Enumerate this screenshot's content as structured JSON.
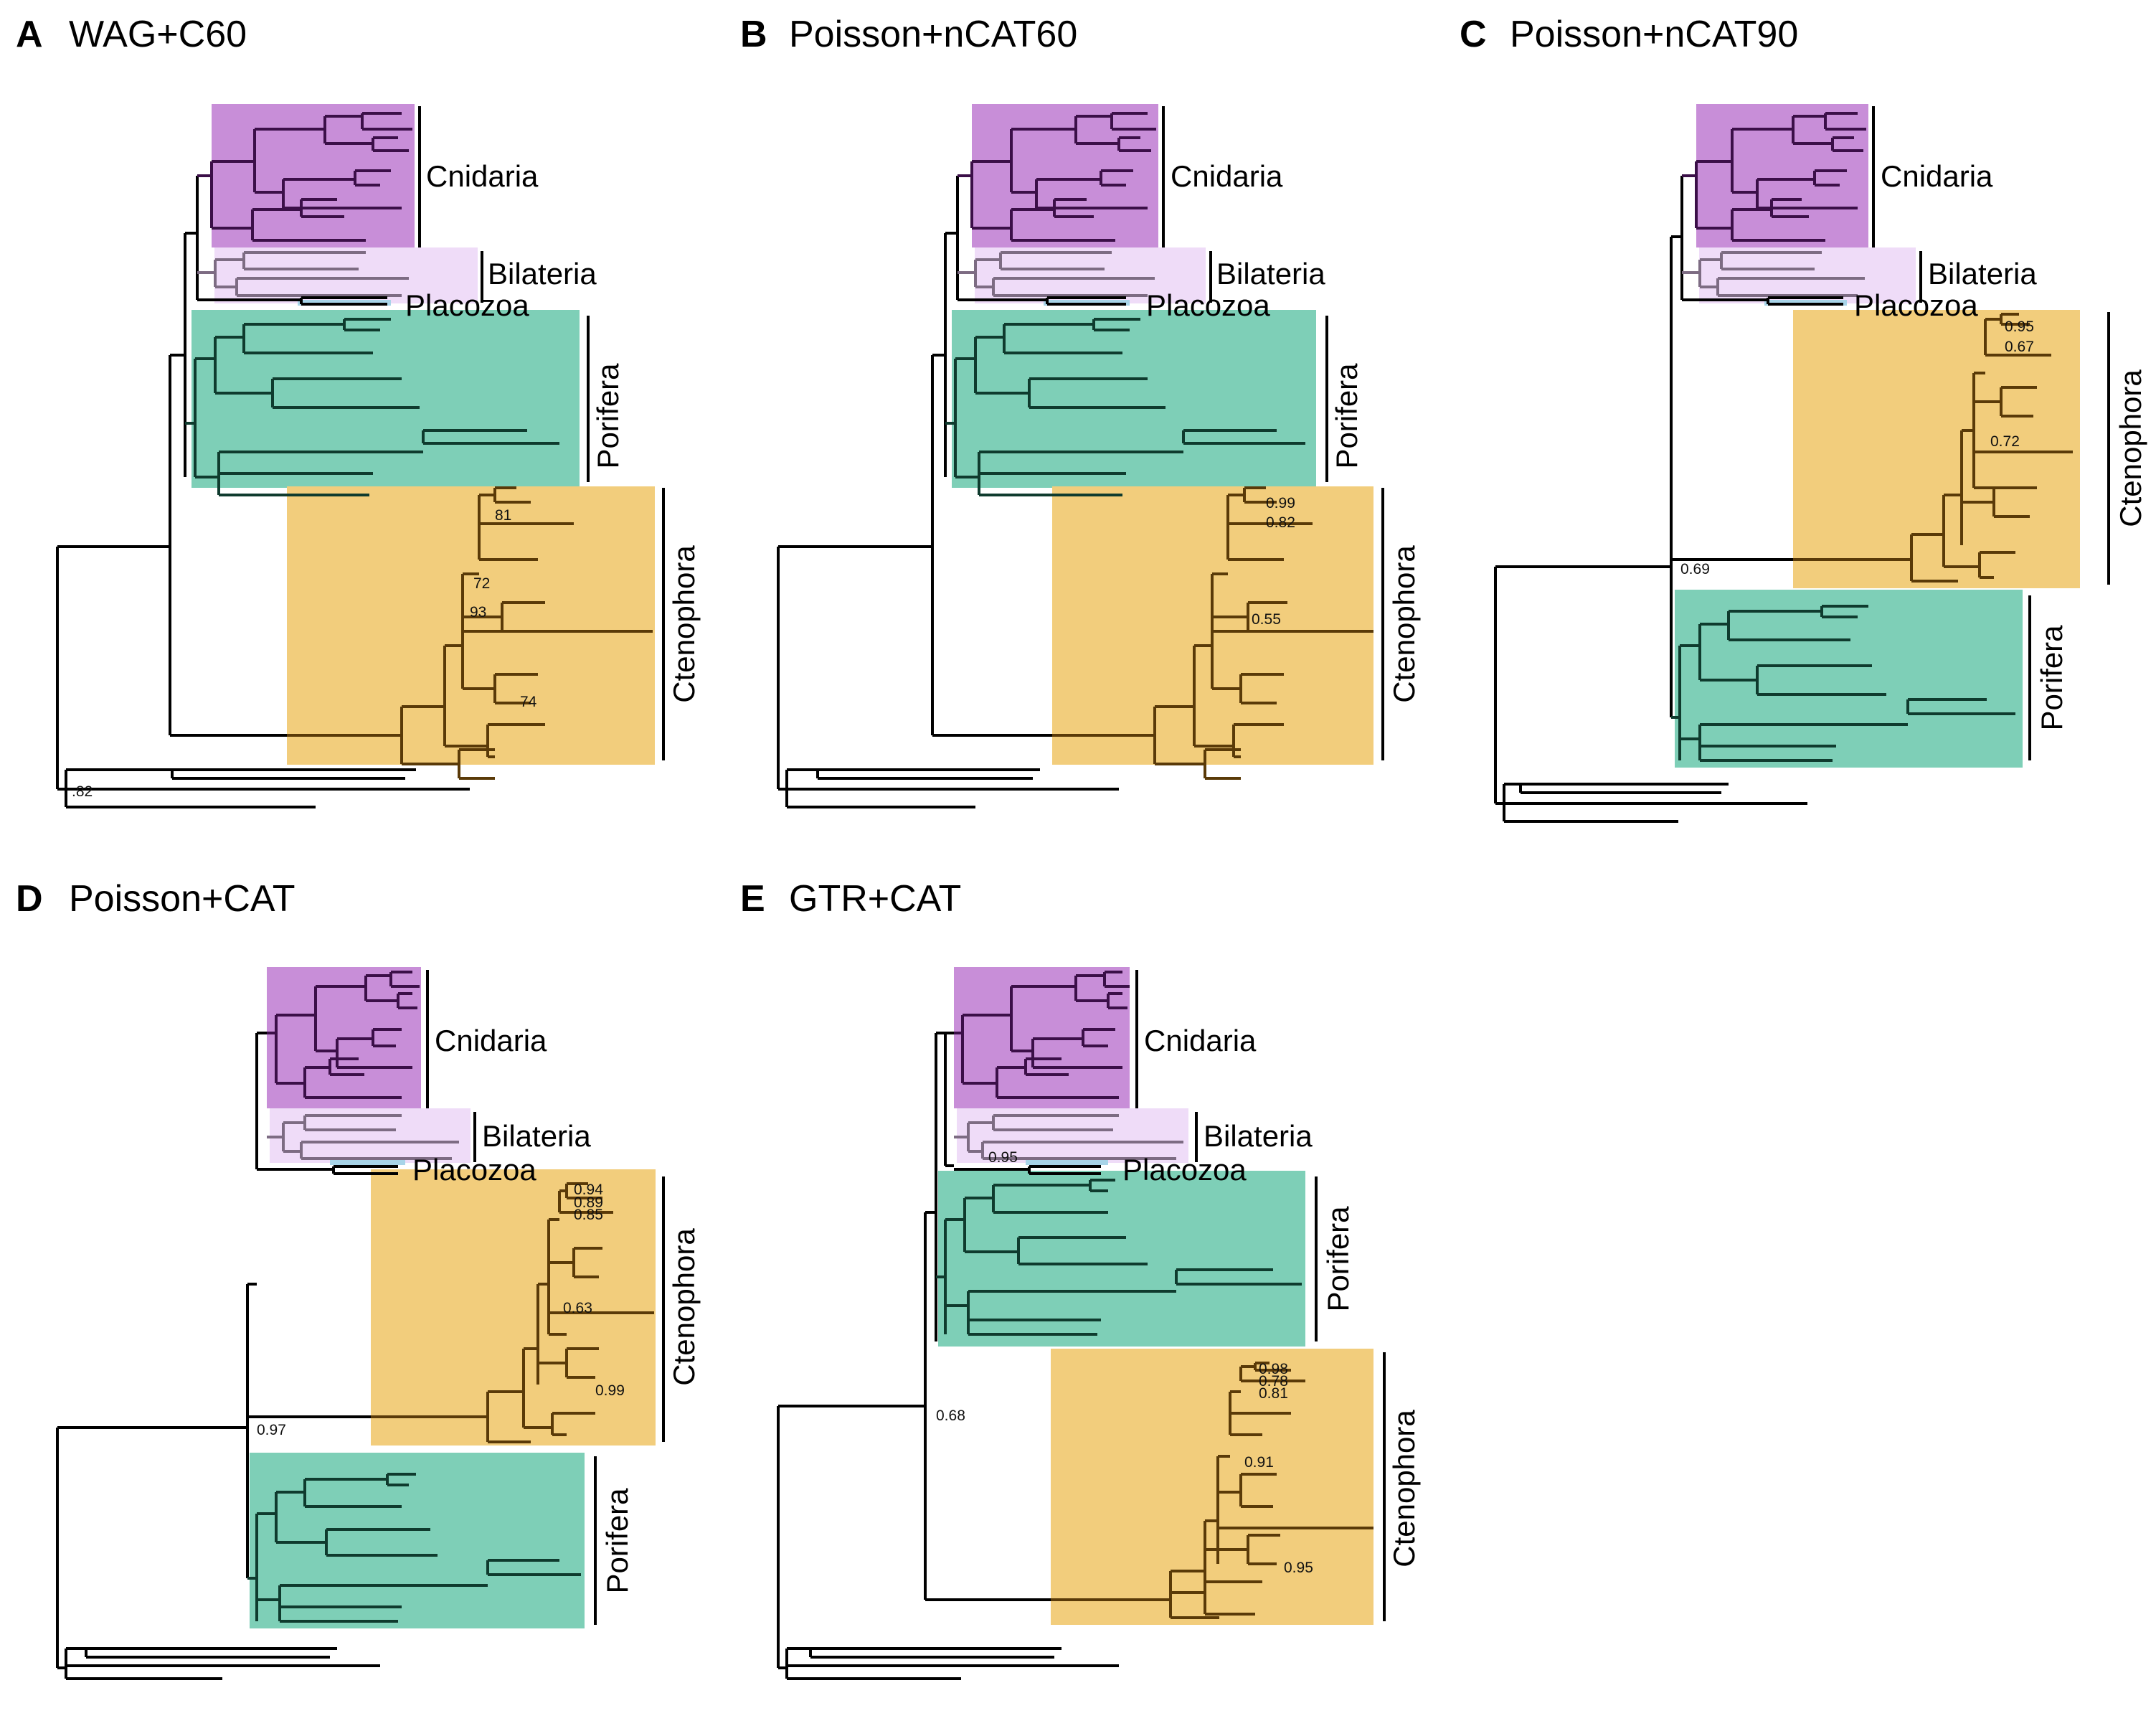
{
  "colors": {
    "cnidaria": "#c88ed8",
    "bilateria": "#efdcf8",
    "placozoa": "#a8d4e8",
    "porifera": "#7ecfb7",
    "ctenophora": "#f2cd7c",
    "cnidaria_branch": "#3b0f48",
    "bilateria_branch": "#7d6c83",
    "porifera_branch": "#0f3b2e",
    "ctenophora_branch": "#5a3a08",
    "root_branch": "#000000"
  },
  "panels": [
    {
      "letter": "A",
      "title": "WAG+C60",
      "labels": {
        "cnidaria": "Cnidaria",
        "bilateria": "Bilateria",
        "placozoa": "Placozoa",
        "porifera": "Porifera",
        "ctenophora": "Ctenophora"
      },
      "supports": {
        "s1": "81",
        "s2": "72",
        "s3": "93",
        "s4": "74",
        "s5": ".82"
      }
    },
    {
      "letter": "B",
      "title": "Poisson+nCAT60",
      "labels": {
        "cnidaria": "Cnidaria",
        "bilateria": "Bilateria",
        "placozoa": "Placozoa",
        "porifera": "Porifera",
        "ctenophora": "Ctenophora"
      },
      "supports": {
        "s1": "0.99",
        "s2": "0.82",
        "s3": "0.55"
      }
    },
    {
      "letter": "C",
      "title": "Poisson+nCAT90",
      "labels": {
        "cnidaria": "Cnidaria",
        "bilateria": "Bilateria",
        "placozoa": "Placozoa",
        "porifera": "Porifera",
        "ctenophora": "Ctenophora"
      },
      "supports": {
        "s1": "0.95",
        "s2": "0.67",
        "s3": "0.72",
        "s4": "0.69"
      }
    },
    {
      "letter": "D",
      "title": "Poisson+CAT",
      "labels": {
        "cnidaria": "Cnidaria",
        "bilateria": "Bilateria",
        "placozoa": "Placozoa",
        "porifera": "Porifera",
        "ctenophora": "Ctenophora"
      },
      "supports": {
        "s1": "0.94",
        "s2": "0.89",
        "s3": "0.85",
        "s4": "0.63",
        "s5": "0.99",
        "s6": "0.97"
      }
    },
    {
      "letter": "E",
      "title": "GTR+CAT",
      "labels": {
        "cnidaria": "Cnidaria",
        "bilateria": "Bilateria",
        "placozoa": "Placozoa",
        "porifera": "Porifera",
        "ctenophora": "Ctenophora"
      },
      "supports": {
        "s1": "0.98",
        "s2": "0.78",
        "s3": "0.81",
        "s4": "0.91",
        "s5": "0.95",
        "s6": "0.95",
        "s7": "0.68"
      }
    }
  ]
}
